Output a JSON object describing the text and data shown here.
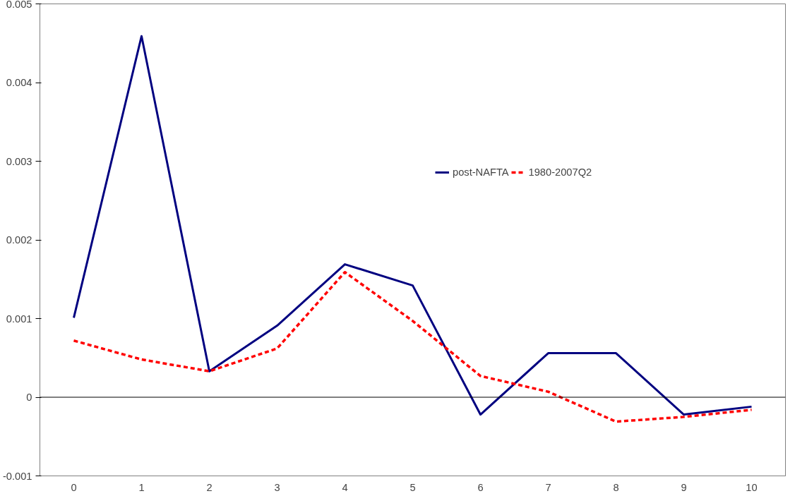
{
  "chart_data": {
    "type": "line",
    "categories": [
      "0",
      "1",
      "2",
      "3",
      "4",
      "5",
      "6",
      "7",
      "8",
      "9",
      "10"
    ],
    "series": [
      {
        "name": "post-NAFTA",
        "color": "#000080",
        "line_style": "solid",
        "values": [
          0.00101,
          0.00459,
          0.00033,
          0.00091,
          0.00169,
          0.00142,
          -0.00022,
          0.00056,
          0.00056,
          -0.00022,
          -0.00012
        ]
      },
      {
        "name": "1980-2007Q2",
        "color": "#ff0000",
        "line_style": "dashed",
        "values": [
          0.00072,
          0.00048,
          0.00033,
          0.00062,
          0.00159,
          0.00097,
          0.00027,
          7e-05,
          -0.00031,
          -0.00025,
          -0.00016
        ]
      }
    ],
    "ylim": [
      -0.001,
      0.005
    ],
    "yticks": [
      -0.001,
      0,
      0.001,
      0.002,
      0.003,
      0.004,
      0.005
    ],
    "ref_lines": [
      {
        "axis": "y",
        "value": 0
      }
    ],
    "grid": false,
    "legend": "top right",
    "marker": "none"
  }
}
